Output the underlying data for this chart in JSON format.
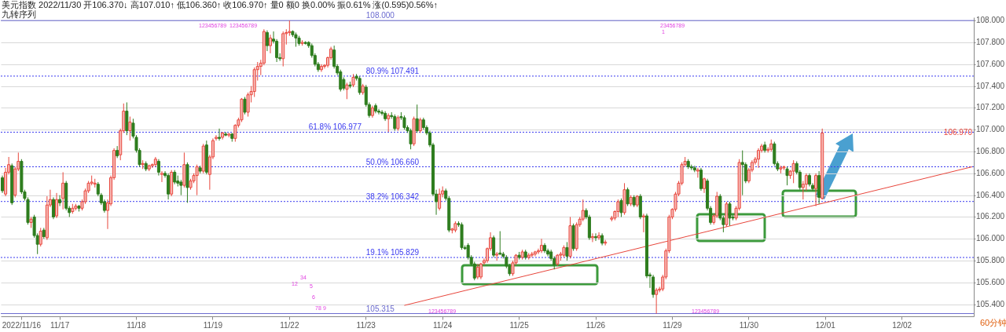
{
  "chart_data": {
    "type": "candlestick",
    "title": "美元指数 2022/11/30 开106.370↓ 高107.010↑ 低106.360↑ 收106.970↑ 量0 额0 换0.00% 振0.61% 涨(0.595)0.56%↑",
    "subtitle": "九转序列",
    "categories": [
      null,
      null,
      null,
      null,
      null,
      null,
      "2022/11/16",
      null,
      null,
      null,
      null,
      null,
      null,
      null,
      null,
      null,
      null,
      null,
      "11/17",
      null,
      null,
      null,
      null,
      null,
      null,
      null,
      null,
      null,
      null,
      null,
      null,
      null,
      null,
      null,
      null,
      null,
      null,
      null,
      null,
      null,
      null,
      null,
      "11/18",
      null,
      null,
      null,
      null,
      null,
      null,
      null,
      null,
      null,
      null,
      null,
      null,
      null,
      null,
      null,
      null,
      null,
      null,
      null,
      null,
      null,
      null,
      null,
      "11/19",
      null,
      null,
      null,
      null,
      null,
      null,
      null,
      null,
      null,
      null,
      null,
      null,
      null,
      null,
      null,
      null,
      null,
      null,
      null,
      null,
      null,
      null,
      null,
      "11/22",
      null,
      null,
      null,
      null,
      null,
      null,
      null,
      null,
      null,
      null,
      null,
      null,
      null,
      null,
      null,
      null,
      null,
      null,
      null,
      null,
      null,
      null,
      null,
      "11/23",
      null,
      null,
      null,
      null,
      null,
      null,
      null,
      null,
      null,
      null,
      null,
      null,
      null,
      null,
      null,
      null,
      null,
      null,
      null,
      null,
      null,
      null,
      null,
      "11/24",
      null,
      null,
      null,
      null,
      null,
      null,
      null,
      null,
      null,
      null,
      null,
      null,
      null,
      null,
      null,
      null,
      null,
      null,
      null,
      null,
      null,
      null,
      null,
      "11/25",
      null,
      null,
      null,
      null,
      null,
      null,
      null,
      null,
      null,
      null,
      null,
      null,
      null,
      null,
      null,
      null,
      null,
      null,
      null,
      null,
      null,
      null,
      null,
      "11/26",
      null,
      null,
      null,
      null,
      null,
      null,
      null,
      null,
      null,
      null,
      null,
      null,
      null,
      null,
      null,
      null,
      null,
      null,
      null,
      null,
      null,
      null,
      null,
      "11/29",
      null,
      null,
      null,
      null,
      null,
      null,
      null,
      null,
      null,
      null,
      null,
      null,
      null,
      null,
      null,
      null,
      null,
      null,
      null,
      null,
      null,
      null,
      null,
      "11/30",
      null,
      null,
      null,
      null,
      null,
      null,
      null,
      null,
      null,
      null,
      null,
      null,
      null,
      null,
      null,
      null,
      null,
      null,
      null,
      null,
      null,
      null,
      null,
      "12/01",
      null,
      null,
      null,
      null,
      null,
      null,
      null,
      null,
      null,
      null,
      null,
      null,
      null,
      null,
      null,
      null,
      null,
      null,
      null,
      null,
      null,
      null,
      null,
      "12/02",
      null,
      null,
      null,
      null,
      null,
      null,
      null,
      null,
      null,
      null,
      null,
      null,
      null,
      null,
      null,
      null,
      null,
      null,
      null,
      null,
      null,
      null
    ],
    "ohlc": [
      [
        106.56,
        106.58,
        106.42,
        106.44
      ],
      [
        106.41,
        106.65,
        106.39,
        106.61
      ],
      [
        106.61,
        106.75,
        106.59,
        106.68
      ],
      [
        106.67,
        106.69,
        106.31,
        106.33
      ],
      [
        106.4,
        106.66,
        106.38,
        106.64
      ],
      [
        106.64,
        106.79,
        106.62,
        106.71
      ],
      [
        106.71,
        106.73,
        106.41,
        106.43
      ],
      [
        106.43,
        106.45,
        106.35,
        106.37
      ],
      [
        106.36,
        106.38,
        106.13,
        106.15
      ],
      [
        106.15,
        106.2,
        106.1,
        106.18
      ],
      [
        106.2,
        106.22,
        106.01,
        106.03
      ],
      [
        106.03,
        106.05,
        105.86,
        105.95
      ],
      [
        105.95,
        106.1,
        105.93,
        106.07
      ],
      [
        106.08,
        106.1,
        106.0,
        106.02
      ],
      [
        106.01,
        106.39,
        105.99,
        106.31
      ],
      [
        106.31,
        106.45,
        106.29,
        106.36
      ],
      [
        106.36,
        106.38,
        106.18,
        106.2
      ],
      [
        106.21,
        106.42,
        106.19,
        106.36
      ],
      [
        106.36,
        106.4,
        106.3,
        106.33
      ],
      [
        106.37,
        106.61,
        106.27,
        106.51
      ],
      [
        106.51,
        106.53,
        106.26,
        106.28
      ],
      [
        106.28,
        106.3,
        106.2,
        106.24
      ],
      [
        106.25,
        106.32,
        106.23,
        106.28
      ],
      [
        106.28,
        106.32,
        106.26,
        106.3
      ],
      [
        106.3,
        106.31,
        106.25,
        106.28
      ],
      [
        106.28,
        106.36,
        106.26,
        106.34
      ],
      [
        106.34,
        106.46,
        106.32,
        106.44
      ],
      [
        106.44,
        106.53,
        106.42,
        106.51
      ],
      [
        106.51,
        106.58,
        106.49,
        106.52
      ],
      [
        106.5,
        106.55,
        106.47,
        106.51
      ],
      [
        106.5,
        106.52,
        106.39,
        106.41
      ],
      [
        106.4,
        106.42,
        106.31,
        106.33
      ],
      [
        106.34,
        106.36,
        106.24,
        106.26
      ],
      [
        106.26,
        106.36,
        106.09,
        106.33
      ],
      [
        106.32,
        106.58,
        106.3,
        106.56
      ],
      [
        106.56,
        106.83,
        106.54,
        106.81
      ],
      [
        106.81,
        106.85,
        106.74,
        106.76
      ],
      [
        106.77,
        107.01,
        106.72,
        106.99
      ],
      [
        106.99,
        107.24,
        106.97,
        107.17
      ],
      [
        107.17,
        107.25,
        106.95,
        106.99
      ],
      [
        106.99,
        107.12,
        106.9,
        107.07
      ],
      [
        107.06,
        107.1,
        106.92,
        106.94
      ],
      [
        106.93,
        106.95,
        106.79,
        106.81
      ],
      [
        106.81,
        106.83,
        106.66,
        106.68
      ],
      [
        106.68,
        106.72,
        106.64,
        106.69
      ],
      [
        106.69,
        106.71,
        106.62,
        106.64
      ],
      [
        106.64,
        106.68,
        106.62,
        106.67
      ],
      [
        106.67,
        106.69,
        106.65,
        106.68
      ],
      [
        106.68,
        106.75,
        106.66,
        106.73
      ],
      [
        106.71,
        106.73,
        106.58,
        106.61
      ],
      [
        106.59,
        106.62,
        106.52,
        106.6
      ],
      [
        106.6,
        106.62,
        106.56,
        106.58
      ],
      [
        106.58,
        106.6,
        106.36,
        106.41
      ],
      [
        106.41,
        106.63,
        106.39,
        106.61
      ],
      [
        106.61,
        106.63,
        106.5,
        106.52
      ],
      [
        106.53,
        106.58,
        106.48,
        106.51
      ],
      [
        106.52,
        106.54,
        106.4,
        106.49
      ],
      [
        106.49,
        106.79,
        106.47,
        106.68
      ],
      [
        106.68,
        106.7,
        106.33,
        106.47
      ],
      [
        106.47,
        106.55,
        106.45,
        106.53
      ],
      [
        106.53,
        106.6,
        106.51,
        106.58
      ],
      [
        106.58,
        106.68,
        106.4,
        106.66
      ],
      [
        106.65,
        106.67,
        106.6,
        106.62
      ],
      [
        106.62,
        106.87,
        106.6,
        106.85
      ],
      [
        106.86,
        106.9,
        106.59,
        106.61
      ],
      [
        106.59,
        106.77,
        106.45,
        106.75
      ],
      [
        106.75,
        106.92,
        106.73,
        106.9
      ],
      [
        106.92,
        106.95,
        106.9,
        106.93
      ],
      [
        106.93,
        107.01,
        106.9,
        106.92
      ],
      [
        106.93,
        106.98,
        106.91,
        106.97
      ],
      [
        106.96,
        106.98,
        106.94,
        106.95
      ],
      [
        106.95,
        106.97,
        106.93,
        106.96
      ],
      [
        106.96,
        106.97,
        106.89,
        106.92
      ],
      [
        106.92,
        107.05,
        106.89,
        107.04
      ],
      [
        107.04,
        107.11,
        107.02,
        107.09
      ],
      [
        107.09,
        107.29,
        107.07,
        107.28
      ],
      [
        107.28,
        107.3,
        107.14,
        107.16
      ],
      [
        107.16,
        107.34,
        107.12,
        107.32
      ],
      [
        107.32,
        107.4,
        107.25,
        107.35
      ],
      [
        107.35,
        107.57,
        107.3,
        107.55
      ],
      [
        107.55,
        107.62,
        107.45,
        107.58
      ],
      [
        107.58,
        107.64,
        107.5,
        107.61
      ],
      [
        107.61,
        107.92,
        107.59,
        107.9
      ],
      [
        107.89,
        107.91,
        107.72,
        107.77
      ],
      [
        107.77,
        107.87,
        107.7,
        107.84
      ],
      [
        107.83,
        107.9,
        107.79,
        107.81
      ],
      [
        107.81,
        107.83,
        107.62,
        107.66
      ],
      [
        107.66,
        107.7,
        107.63,
        107.65
      ],
      [
        107.65,
        107.9,
        107.58,
        107.88
      ],
      [
        107.88,
        107.92,
        107.78,
        107.89
      ],
      [
        107.89,
        108.0,
        107.86,
        107.9
      ],
      [
        107.9,
        107.91,
        107.85,
        107.87
      ],
      [
        107.87,
        107.89,
        107.76,
        107.84
      ],
      [
        107.84,
        107.86,
        107.77,
        107.79
      ],
      [
        107.79,
        107.82,
        107.77,
        107.8
      ],
      [
        107.8,
        107.81,
        107.78,
        107.79
      ],
      [
        107.8,
        107.81,
        107.75,
        107.77
      ],
      [
        107.77,
        107.79,
        107.66,
        107.68
      ],
      [
        107.68,
        107.7,
        107.58,
        107.6
      ],
      [
        107.6,
        107.62,
        107.53,
        107.55
      ],
      [
        107.55,
        107.6,
        107.53,
        107.58
      ],
      [
        107.58,
        107.6,
        107.56,
        107.59
      ],
      [
        107.59,
        107.67,
        107.57,
        107.66
      ],
      [
        107.66,
        107.76,
        107.64,
        107.74
      ],
      [
        107.73,
        107.77,
        107.56,
        107.58
      ],
      [
        107.58,
        107.6,
        107.5,
        107.52
      ],
      [
        107.53,
        107.55,
        107.35,
        107.37
      ],
      [
        107.46,
        107.48,
        107.36,
        107.38
      ],
      [
        107.37,
        107.43,
        107.28,
        107.41
      ],
      [
        107.41,
        107.44,
        107.38,
        107.4
      ],
      [
        107.41,
        107.51,
        107.39,
        107.48
      ],
      [
        107.49,
        107.51,
        107.45,
        107.47
      ],
      [
        107.47,
        107.49,
        107.32,
        107.34
      ],
      [
        107.34,
        107.42,
        107.32,
        107.4
      ],
      [
        107.39,
        107.41,
        107.21,
        107.23
      ],
      [
        107.23,
        107.25,
        107.11,
        107.13
      ],
      [
        107.13,
        107.22,
        107.11,
        107.2
      ],
      [
        107.22,
        107.24,
        107.15,
        107.17
      ],
      [
        107.17,
        107.19,
        107.14,
        107.16
      ],
      [
        107.16,
        107.18,
        107.13,
        107.15
      ],
      [
        107.15,
        107.17,
        107.08,
        107.1
      ],
      [
        107.1,
        107.15,
        106.98,
        107.13
      ],
      [
        107.13,
        107.16,
        107.1,
        107.12
      ],
      [
        107.12,
        107.14,
        106.99,
        107.01
      ],
      [
        107.01,
        107.13,
        106.99,
        107.11
      ],
      [
        107.12,
        107.16,
        107.09,
        107.11
      ],
      [
        107.11,
        107.13,
        107.0,
        107.02
      ],
      [
        107.02,
        107.04,
        106.97,
        106.99
      ],
      [
        106.99,
        107.01,
        106.82,
        106.87
      ],
      [
        106.87,
        107.12,
        106.85,
        107.1
      ],
      [
        107.1,
        107.23,
        106.97,
        106.99
      ],
      [
        106.99,
        107.11,
        106.97,
        107.09
      ],
      [
        107.09,
        107.11,
        107.0,
        107.02
      ],
      [
        107.02,
        107.04,
        106.95,
        106.97
      ],
      [
        106.97,
        106.99,
        106.84,
        106.86
      ],
      [
        106.86,
        106.88,
        106.39,
        106.41
      ],
      [
        106.41,
        106.45,
        106.22,
        106.34
      ],
      [
        106.28,
        106.46,
        106.26,
        106.41
      ],
      [
        106.41,
        106.48,
        106.38,
        106.44
      ],
      [
        106.44,
        106.46,
        106.35,
        106.37
      ],
      [
        106.37,
        106.39,
        106.06,
        106.08
      ],
      [
        106.08,
        106.1,
        106.05,
        106.09
      ],
      [
        106.08,
        106.16,
        106.06,
        106.14
      ],
      [
        106.14,
        106.16,
        106.11,
        106.13
      ],
      [
        106.13,
        106.15,
        105.9,
        105.92
      ],
      [
        105.92,
        105.94,
        105.9,
        105.91
      ],
      [
        105.94,
        105.96,
        105.81,
        105.83
      ],
      [
        105.83,
        105.85,
        105.75,
        105.77
      ],
      [
        105.77,
        105.79,
        105.62,
        105.64
      ],
      [
        105.65,
        105.77,
        105.63,
        105.74
      ],
      [
        105.65,
        105.78,
        105.63,
        105.77
      ],
      [
        105.78,
        105.82,
        105.76,
        105.8
      ],
      [
        105.8,
        105.92,
        105.78,
        105.91
      ],
      [
        105.91,
        106.06,
        105.89,
        106.01
      ],
      [
        106.01,
        106.03,
        105.83,
        105.85
      ],
      [
        105.85,
        105.88,
        105.8,
        105.86
      ],
      [
        105.87,
        106.07,
        105.85,
        105.86
      ],
      [
        105.86,
        105.88,
        105.82,
        105.84
      ],
      [
        105.83,
        105.85,
        105.73,
        105.75
      ],
      [
        105.75,
        105.77,
        105.66,
        105.68
      ],
      [
        105.68,
        105.8,
        105.66,
        105.78
      ],
      [
        105.78,
        105.86,
        105.76,
        105.85
      ],
      [
        105.85,
        105.88,
        105.81,
        105.83
      ],
      [
        105.83,
        105.9,
        105.81,
        105.88
      ],
      [
        105.88,
        105.9,
        105.81,
        105.83
      ],
      [
        105.83,
        105.87,
        105.81,
        105.85
      ],
      [
        105.85,
        105.88,
        105.83,
        105.86
      ],
      [
        105.86,
        105.89,
        105.84,
        105.88
      ],
      [
        105.88,
        105.91,
        105.86,
        105.89
      ],
      [
        105.89,
        106.0,
        105.87,
        105.94
      ],
      [
        105.94,
        105.96,
        105.87,
        105.89
      ],
      [
        105.89,
        105.91,
        105.84,
        105.86
      ],
      [
        105.88,
        105.9,
        105.8,
        105.82
      ],
      [
        105.82,
        105.84,
        105.72,
        105.76
      ],
      [
        105.77,
        105.86,
        105.75,
        105.85
      ],
      [
        105.85,
        105.88,
        105.8,
        105.86
      ],
      [
        105.85,
        105.94,
        105.83,
        105.92
      ],
      [
        105.92,
        105.97,
        105.8,
        105.84
      ],
      [
        105.84,
        106.2,
        105.82,
        106.12
      ],
      [
        106.12,
        106.14,
        105.89,
        105.91
      ],
      [
        105.91,
        106.15,
        105.89,
        106.13
      ],
      [
        106.13,
        106.2,
        106.11,
        106.18
      ],
      [
        106.18,
        106.36,
        106.16,
        106.26
      ],
      [
        106.26,
        106.28,
        106.18,
        106.2
      ],
      [
        106.2,
        106.22,
        105.99,
        106.01
      ],
      [
        106.01,
        106.05,
        105.97,
        106.02
      ],
      [
        106.02,
        106.05,
        105.98,
        106.01
      ],
      [
        106.01,
        106.06,
        105.99,
        106.03
      ],
      [
        106.03,
        106.05,
        105.94,
        105.96
      ],
      [
        105.96,
        105.99,
        105.94,
        105.97
      ],
      null,
      [
        106.18,
        106.21,
        106.16,
        106.19
      ],
      [
        106.19,
        106.26,
        106.17,
        106.25
      ],
      [
        106.25,
        106.36,
        106.2,
        106.34
      ],
      [
        106.35,
        106.37,
        106.2,
        106.24
      ],
      [
        106.24,
        106.51,
        106.22,
        106.45
      ],
      [
        106.45,
        106.47,
        106.3,
        106.32
      ],
      [
        106.32,
        106.4,
        106.3,
        106.38
      ],
      [
        106.38,
        106.4,
        106.29,
        106.31
      ],
      [
        106.31,
        106.4,
        106.29,
        106.39
      ],
      [
        106.39,
        106.41,
        106.18,
        106.2
      ],
      [
        106.2,
        106.23,
        106.06,
        106.21
      ],
      [
        106.21,
        106.23,
        105.64,
        105.66
      ],
      [
        105.67,
        105.69,
        105.55,
        105.66
      ],
      [
        105.65,
        105.67,
        105.46,
        105.49
      ],
      [
        105.49,
        105.55,
        105.315,
        105.53
      ],
      [
        105.53,
        105.56,
        105.51,
        105.54
      ],
      [
        105.54,
        105.67,
        105.52,
        105.65
      ],
      [
        105.65,
        105.91,
        105.63,
        105.89
      ],
      [
        105.89,
        106.22,
        105.87,
        106.2
      ],
      [
        106.2,
        106.28,
        106.18,
        106.27
      ],
      [
        106.27,
        106.43,
        106.25,
        106.41
      ],
      [
        106.41,
        106.53,
        106.39,
        106.51
      ],
      [
        106.51,
        106.7,
        106.49,
        106.68
      ],
      [
        106.68,
        106.75,
        106.66,
        106.71
      ],
      [
        106.71,
        106.73,
        106.64,
        106.66
      ],
      [
        106.66,
        106.68,
        106.63,
        106.65
      ],
      [
        106.65,
        106.67,
        106.61,
        106.63
      ],
      [
        106.62,
        106.65,
        106.56,
        106.63
      ],
      [
        106.63,
        106.65,
        106.44,
        106.46
      ],
      [
        106.46,
        106.56,
        106.42,
        106.55
      ],
      [
        106.53,
        106.55,
        106.26,
        106.28
      ],
      [
        106.28,
        106.3,
        106.13,
        106.15
      ],
      [
        106.15,
        106.23,
        106.13,
        106.21
      ],
      [
        106.21,
        106.43,
        106.19,
        106.39
      ],
      [
        106.39,
        106.41,
        106.17,
        106.19
      ],
      [
        106.19,
        106.21,
        106.06,
        106.13
      ],
      [
        106.13,
        106.34,
        106.11,
        106.32
      ],
      [
        106.32,
        106.34,
        106.12,
        106.19
      ],
      [
        106.2,
        106.22,
        106.17,
        106.19
      ],
      [
        106.19,
        106.3,
        106.17,
        106.28
      ],
      [
        106.28,
        106.73,
        106.26,
        106.7
      ],
      [
        106.7,
        106.81,
        106.4,
        106.68
      ],
      [
        106.68,
        106.7,
        106.51,
        106.53
      ],
      [
        106.53,
        106.65,
        106.51,
        106.63
      ],
      [
        106.63,
        106.72,
        106.61,
        106.7
      ],
      [
        106.7,
        106.75,
        106.68,
        106.73
      ],
      [
        106.73,
        106.83,
        106.65,
        106.81
      ],
      [
        106.81,
        106.87,
        106.79,
        106.85
      ],
      [
        106.86,
        106.89,
        106.79,
        106.81
      ],
      [
        106.81,
        106.84,
        106.79,
        106.82
      ],
      [
        106.82,
        106.91,
        106.8,
        106.87
      ],
      [
        106.87,
        106.89,
        106.67,
        106.69
      ],
      [
        106.69,
        106.71,
        106.62,
        106.64
      ],
      [
        106.64,
        106.67,
        106.6,
        106.65
      ],
      [
        106.65,
        106.67,
        106.63,
        106.66
      ],
      [
        106.64,
        106.66,
        106.49,
        106.58
      ],
      [
        106.58,
        106.63,
        106.55,
        106.62
      ],
      [
        106.62,
        106.72,
        106.51,
        106.69
      ],
      [
        106.69,
        106.71,
        106.59,
        106.61
      ],
      [
        106.61,
        106.63,
        106.45,
        106.47
      ],
      [
        106.47,
        106.53,
        106.36,
        106.5
      ],
      [
        106.5,
        106.6,
        106.44,
        106.58
      ],
      [
        106.58,
        106.6,
        106.48,
        106.5
      ],
      [
        106.49,
        106.51,
        106.44,
        106.46
      ],
      [
        106.46,
        106.6,
        106.3,
        106.58
      ],
      [
        106.58,
        106.62,
        106.32,
        106.38
      ],
      [
        106.37,
        107.01,
        106.36,
        106.97
      ],
      null,
      null,
      null,
      null,
      null,
      null,
      null,
      null,
      null,
      null,
      null,
      null,
      null,
      null,
      null,
      null,
      null,
      null,
      null,
      null,
      null,
      null,
      null,
      null,
      null,
      null,
      null,
      null,
      null,
      null,
      null,
      null,
      null,
      null,
      null,
      null,
      null,
      null,
      null,
      null,
      null,
      null,
      null,
      null,
      null,
      null,
      null
    ],
    "ylim": [
      105.29,
      108.03
    ],
    "yticks": [
      {
        "value": 105.4,
        "label": "105.400"
      },
      {
        "value": 105.6,
        "label": "105.600"
      },
      {
        "value": 105.8,
        "label": "105.800"
      },
      {
        "value": 106,
        "label": "106.000"
      },
      {
        "value": 106.2,
        "label": "106.200"
      },
      {
        "value": 106.4,
        "label": "106.400"
      },
      {
        "value": 106.6,
        "label": "106.600"
      },
      {
        "value": 106.8,
        "label": "106.800"
      },
      {
        "value": 107,
        "label": "107.000"
      },
      {
        "value": 107.2,
        "label": "107.200"
      },
      {
        "value": 107.4,
        "label": "107.400"
      },
      {
        "value": 107.6,
        "label": "107.600"
      },
      {
        "value": 107.8,
        "label": "107.800"
      },
      {
        "value": 108,
        "label": "108.000"
      }
    ],
    "grid": "y",
    "ref_lines": [
      {
        "axis": "y",
        "value": 108.0,
        "label": "108.000",
        "color": "#6b6bd0",
        "line_style": "solid"
      },
      {
        "axis": "y",
        "value": 107.491,
        "label": "80.9% 107.491",
        "color": "#3a3af0",
        "line_style": "dotted"
      },
      {
        "axis": "y",
        "value": 106.977,
        "label": "61.8% 106.977",
        "color": "#3a3af0",
        "line_style": "dotted"
      },
      {
        "axis": "y",
        "value": 106.66,
        "label": "50.0% 106.660",
        "color": "#3a3af0",
        "line_style": "dotted"
      },
      {
        "axis": "y",
        "value": 106.342,
        "label": "38.2% 106.342",
        "color": "#3a3af0",
        "line_style": "dotted"
      },
      {
        "axis": "y",
        "value": 105.829,
        "label": "19.1% 105.829",
        "color": "#3a3af0",
        "line_style": "dotted"
      },
      {
        "axis": "y",
        "value": 105.315,
        "label": "105.315",
        "color": "#6b6bd0",
        "line_style": "solid"
      }
    ],
    "series": [
      {
        "type": "line",
        "color": "#e8463c",
        "values": [
          null,
          null,
          null,
          null,
          null,
          null,
          null,
          null,
          null,
          null,
          null,
          null,
          null,
          null,
          null,
          null,
          null,
          null,
          null,
          null,
          null,
          null,
          null,
          null,
          null,
          null,
          null,
          null,
          null,
          null,
          null,
          null,
          null,
          null,
          null,
          null,
          null,
          null,
          null,
          null,
          null,
          null,
          null,
          null,
          null,
          null,
          null,
          null,
          null,
          null,
          null,
          null,
          null,
          null,
          null,
          null,
          null,
          null,
          null,
          null,
          null,
          null,
          null,
          null,
          null,
          null,
          null,
          null,
          null,
          null,
          null,
          null,
          null,
          null,
          null,
          null,
          null,
          null,
          null,
          null,
          null,
          null,
          null,
          null,
          null,
          null,
          null,
          null,
          null,
          null,
          null,
          null,
          null,
          null,
          null,
          null,
          null,
          null,
          null,
          null,
          null,
          null,
          null,
          null,
          null,
          null,
          null,
          null,
          null,
          null,
          null,
          null,
          null,
          null,
          null,
          null,
          null,
          null,
          null,
          null,
          null,
          null,
          null,
          null,
          null,
          null,
          105.39,
          null,
          null,
          null,
          null,
          null,
          null,
          null,
          null,
          null,
          null,
          null,
          null,
          null,
          null,
          null,
          null,
          null,
          null,
          null,
          null,
          null,
          null,
          null,
          null,
          null,
          null,
          null,
          null,
          null,
          null,
          null,
          null,
          null,
          null,
          null,
          null,
          null,
          null,
          null,
          null,
          null,
          null,
          null,
          null,
          null,
          null,
          null,
          null,
          null,
          null,
          null,
          null,
          null,
          null,
          null,
          null,
          null,
          null,
          null,
          null,
          null,
          null,
          null,
          null,
          null,
          null,
          null,
          null,
          null,
          null,
          null,
          null,
          null,
          null,
          null,
          null,
          null,
          null,
          null,
          null,
          null,
          null,
          null,
          null,
          null,
          null,
          null,
          null,
          null,
          null,
          null,
          null,
          null,
          null,
          null,
          null,
          null,
          null,
          null,
          null,
          null,
          null,
          null,
          null,
          null,
          null,
          null,
          null,
          null,
          null,
          null,
          null,
          null,
          null,
          null,
          null,
          null,
          null,
          null,
          null,
          null,
          null,
          null,
          null,
          null,
          null,
          null,
          null,
          null,
          null,
          null,
          null,
          null,
          null,
          null,
          null,
          null,
          null,
          null,
          null,
          null,
          null,
          null,
          null,
          null,
          null,
          null,
          null,
          null,
          null,
          null,
          null,
          null,
          null,
          null,
          null,
          null,
          null,
          null,
          null,
          null,
          null,
          null,
          null,
          null,
          null,
          null,
          null,
          null,
          null,
          null,
          null,
          null,
          null,
          null,
          null,
          null,
          106.66
        ]
      }
    ],
    "annotations": [
      "123456789",
      "123456789",
      "23456789",
      "1",
      "123456789",
      "123456789",
      "12",
      "34",
      "5",
      "6",
      "78",
      "9",
      {
        "text": "106.970",
        "y": 106.97
      },
      "60分钟"
    ]
  }
}
